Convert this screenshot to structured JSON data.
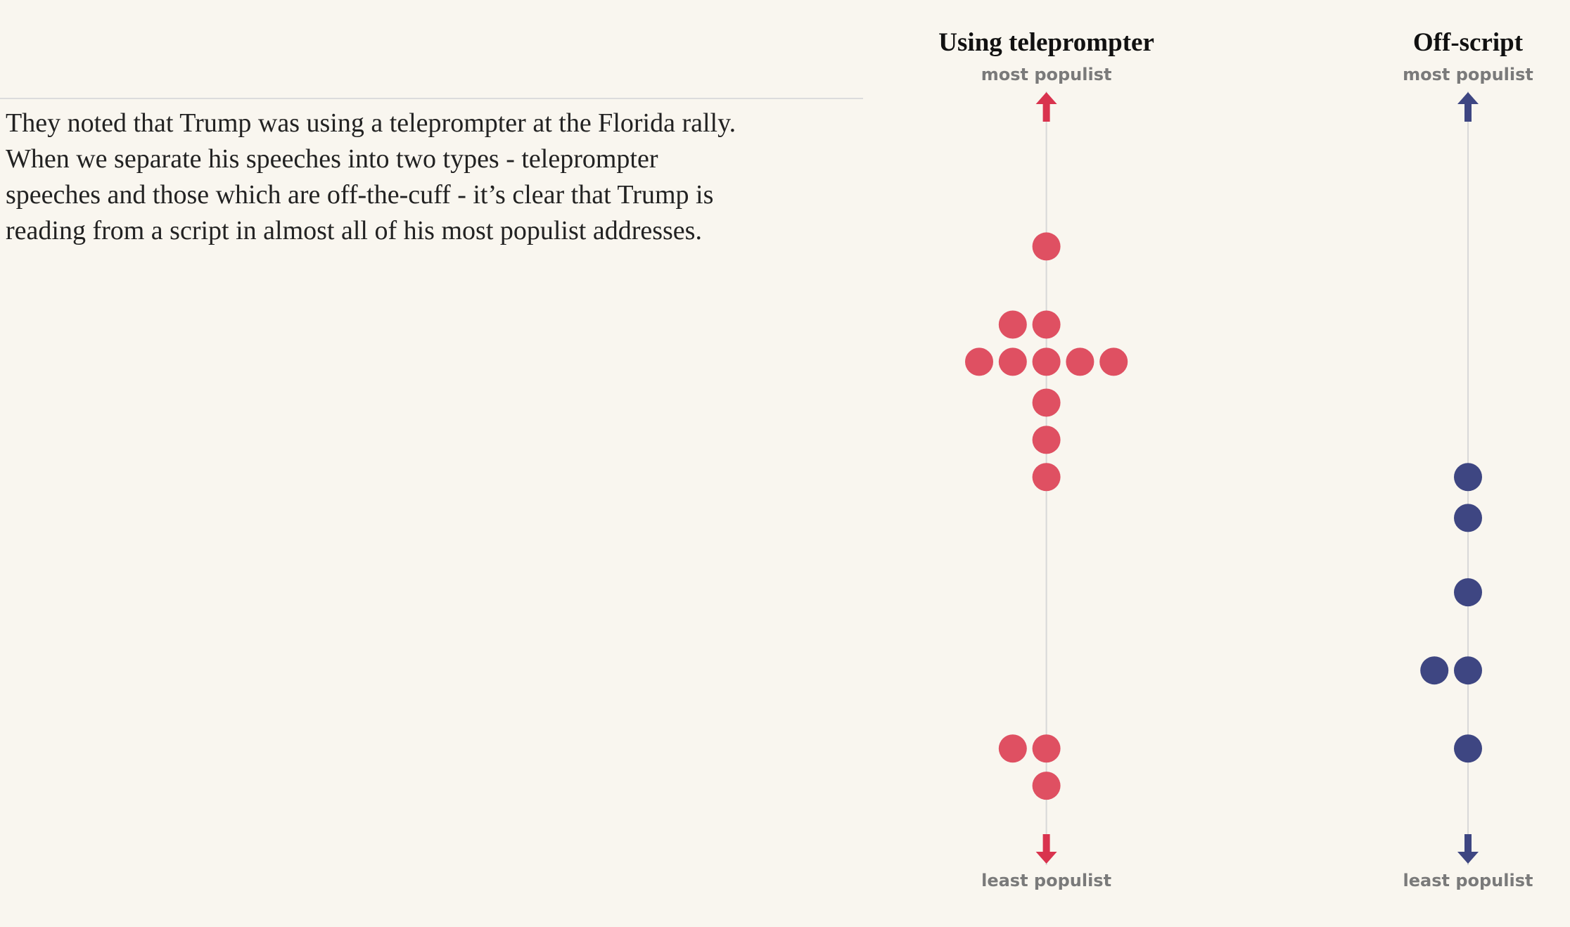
{
  "text": {
    "lines": [
      "They noted that Trump was using a teleprompter at the Florida rally.",
      "When we separate his speeches into two types - teleprompter",
      "speeches and those which are off-the-cuff - it’s clear that Trump is",
      "reading from a script in almost all of his most populist addresses."
    ]
  },
  "chart_data": {
    "type": "beeswarm",
    "top_label": "most populist",
    "bottom_label": "least populist",
    "ylim": [
      0,
      100
    ],
    "series": [
      {
        "name": "Using teleprompter",
        "color": "#df5062",
        "arrow_color": "#d9334e",
        "values": [
          81,
          70.5,
          70.5,
          65.5,
          65.5,
          65.5,
          65.5,
          65.5,
          60,
          55,
          50,
          13.5,
          13.5,
          8.5
        ]
      },
      {
        "name": "Off-script",
        "color": "#3e4682",
        "arrow_color": "#3e4682",
        "values": [
          50,
          44.5,
          34.5,
          24,
          24,
          13.5
        ]
      }
    ]
  }
}
